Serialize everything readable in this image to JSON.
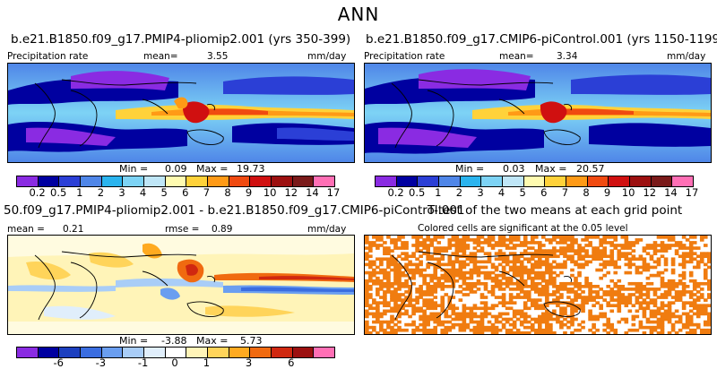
{
  "figure": {
    "title": "ANN"
  },
  "panel1": {
    "title": "b.e21.B1850.f09_g17.PMIP4-pliomip2.001 (yrs 350-399)",
    "label": "Precipitation rate",
    "mean_label": "mean=",
    "mean_value": "3.55",
    "units": "mm/day",
    "min_label": "Min =",
    "min_value": "0.09",
    "max_label": "Max =",
    "max_value": "19.73"
  },
  "panel2": {
    "title": "b.e21.B1850.f09_g17.CMIP6-piControl.001 (yrs 1150-1199)",
    "label": "Precipitation rate",
    "mean_label": "mean=",
    "mean_value": "3.34",
    "units": "mm/day",
    "min_label": "Min =",
    "min_value": "0.03",
    "max_label": "Max =",
    "max_value": "20.57"
  },
  "panel3": {
    "title": "50.f09_g17.PMIP4-pliomip2.001 - b.e21.B1850.f09_g17.CMIP6-piControl.001",
    "mean_label": "mean =",
    "mean_value": "0.21",
    "rmse_label": "rmse =",
    "rmse_value": "0.89",
    "units": "mm/day",
    "min_label": "Min =",
    "min_value": "-3.88",
    "max_label": "Max =",
    "max_value": "5.73"
  },
  "panel4": {
    "title": "T-test of the two means at each grid point",
    "label": "Colored cells are significant at the 0.05 level",
    "color": "#f07c10"
  },
  "colorbar_precip": {
    "colors": [
      "#8a2be2",
      "#0000a0",
      "#2b3fd6",
      "#4f86e8",
      "#2bb4ee",
      "#7dd3f5",
      "#bfe6f7",
      "#fffbb0",
      "#ffd23a",
      "#ff9a16",
      "#f04a10",
      "#d01010",
      "#9c1010",
      "#7a1a1a",
      "#ff6fb5"
    ],
    "ticks": [
      "0.2",
      "0.5",
      "1",
      "2",
      "3",
      "4",
      "5",
      "6",
      "7",
      "8",
      "9",
      "10",
      "12",
      "14",
      "17"
    ]
  },
  "colorbar_diff": {
    "colors": [
      "#8a2be2",
      "#0000a0",
      "#1c3fbf",
      "#3a6de0",
      "#6a9ef0",
      "#a9cdf7",
      "#e0eefb",
      "#ffffff",
      "#fff4b8",
      "#ffd45a",
      "#ffaa20",
      "#f06a10",
      "#d02810",
      "#9c1010",
      "#ff6fb5"
    ],
    "ticks": [
      "-6",
      "-3",
      "-1",
      "0",
      "1",
      "3",
      "6"
    ]
  }
}
